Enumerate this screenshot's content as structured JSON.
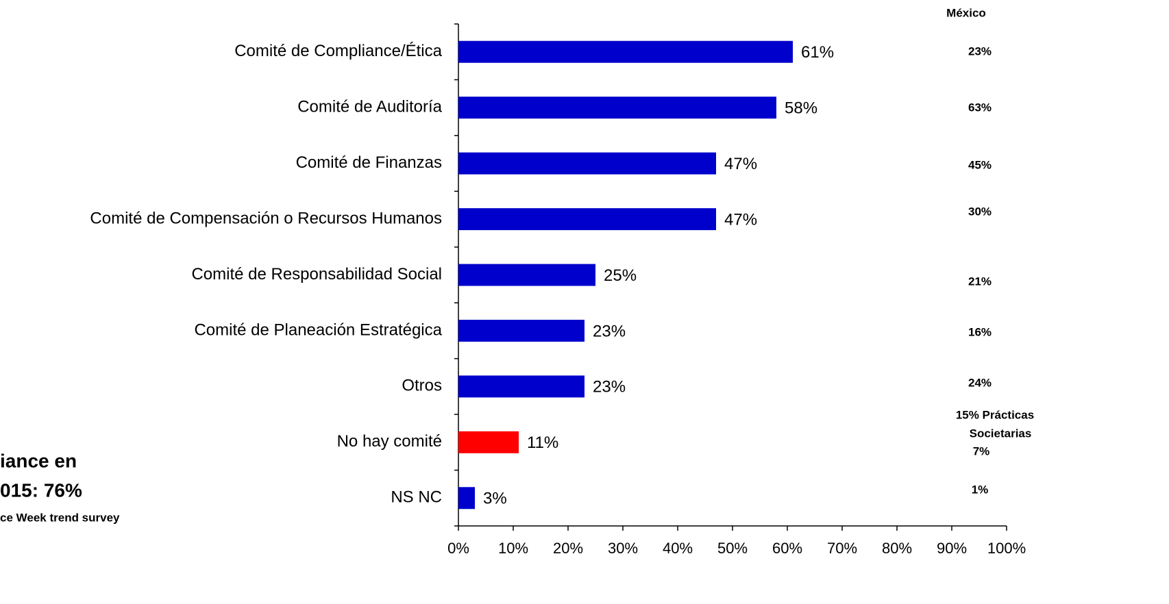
{
  "chart_data": {
    "type": "hbar",
    "categories": [
      "Comité de Compliance/Ética",
      "Comité de Auditoría",
      "Comité de Finanzas",
      "Comité de Compensación o Recursos Humanos",
      "Comité de Responsabilidad Social",
      "Comité de Planeación  Estratégica",
      "Otros",
      "No hay comité",
      "NS NC"
    ],
    "values": [
      61,
      58,
      47,
      47,
      25,
      23,
      23,
      11,
      3
    ],
    "value_labels": [
      "61%",
      "58%",
      "47%",
      "47%",
      "25%",
      "23%",
      "23%",
      "11%",
      "3%"
    ],
    "colors": [
      "#0000cc",
      "#0000cc",
      "#0000cc",
      "#0000cc",
      "#0000cc",
      "#0000cc",
      "#0000cc",
      "#ff0000",
      "#0000cc"
    ],
    "xlim": [
      0,
      100
    ],
    "xticks": [
      {
        "value": 0,
        "label": "0%"
      },
      {
        "value": 10,
        "label": "10%"
      },
      {
        "value": 20,
        "label": "20%"
      },
      {
        "value": 30,
        "label": "30%"
      },
      {
        "value": 40,
        "label": "40%"
      },
      {
        "value": 50,
        "label": "50%"
      },
      {
        "value": 60,
        "label": "60%"
      },
      {
        "value": 70,
        "label": "70%"
      },
      {
        "value": 80,
        "label": "80%"
      },
      {
        "value": 90,
        "label": "90%"
      },
      {
        "value": 100,
        "label": "100%"
      }
    ],
    "grid": false,
    "mexico": {
      "header": "México",
      "labels": [
        "23%",
        "63%",
        "45%",
        "30%",
        "21%",
        "16%",
        "24%",
        "15% Prácticas",
        "Societarias",
        "7%",
        "1%"
      ]
    },
    "annotations": [
      "iance en",
      "015: 76%",
      "ce Week trend survey"
    ]
  }
}
